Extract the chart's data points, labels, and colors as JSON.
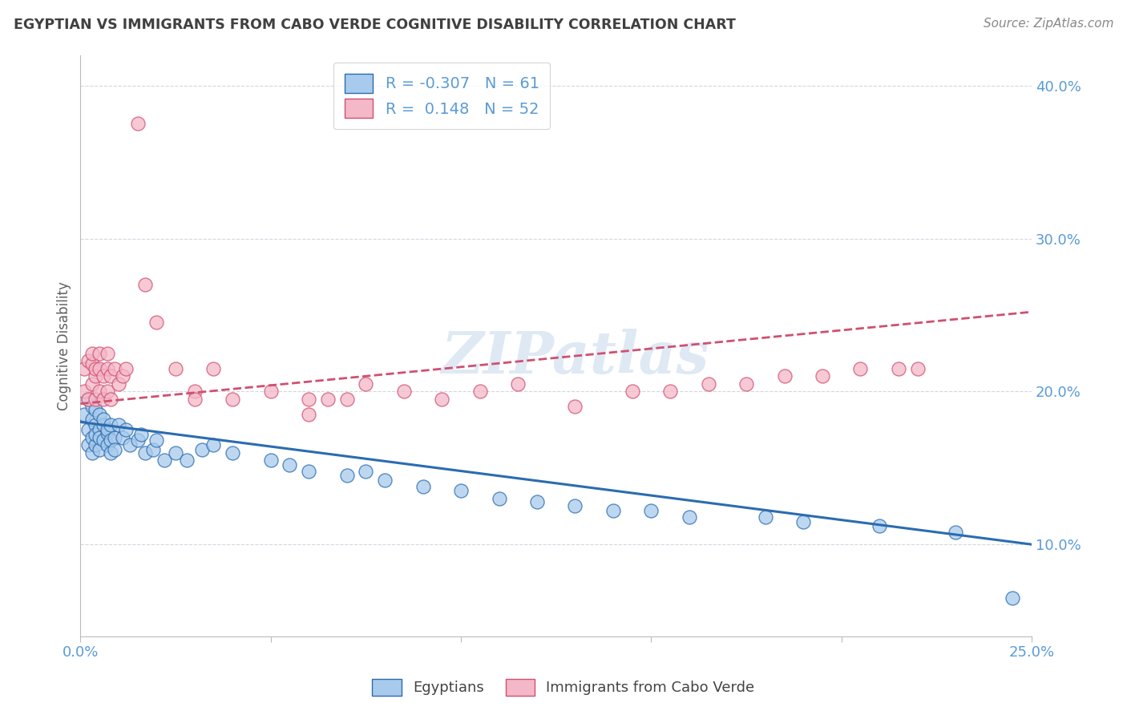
{
  "title": "EGYPTIAN VS IMMIGRANTS FROM CABO VERDE COGNITIVE DISABILITY CORRELATION CHART",
  "source": "Source: ZipAtlas.com",
  "ylabel": "Cognitive Disability",
  "x_min": 0.0,
  "x_max": 0.25,
  "y_min": 0.04,
  "y_max": 0.42,
  "x_ticks": [
    0.0,
    0.05,
    0.1,
    0.15,
    0.2,
    0.25
  ],
  "x_tick_labels": [
    "0.0%",
    "",
    "",
    "",
    "",
    "25.0%"
  ],
  "y_ticks_right": [
    0.1,
    0.2,
    0.3,
    0.4
  ],
  "y_tick_labels_right": [
    "10.0%",
    "20.0%",
    "30.0%",
    "40.0%"
  ],
  "blue_color": "#a8caec",
  "pink_color": "#f4b8c8",
  "blue_line_color": "#2b6cb0",
  "pink_line_color": "#d05070",
  "R_blue": -0.307,
  "N_blue": 61,
  "R_pink": 0.148,
  "N_pink": 52,
  "legend_label_blue": "R = -0.307   N = 61",
  "legend_label_pink": "R =  0.148   N = 52",
  "scatter_blue_x": [
    0.001,
    0.002,
    0.002,
    0.002,
    0.003,
    0.003,
    0.003,
    0.003,
    0.004,
    0.004,
    0.004,
    0.004,
    0.005,
    0.005,
    0.005,
    0.005,
    0.006,
    0.006,
    0.006,
    0.007,
    0.007,
    0.007,
    0.008,
    0.008,
    0.008,
    0.009,
    0.009,
    0.01,
    0.011,
    0.012,
    0.013,
    0.015,
    0.016,
    0.017,
    0.019,
    0.02,
    0.022,
    0.025,
    0.028,
    0.032,
    0.035,
    0.04,
    0.05,
    0.055,
    0.06,
    0.07,
    0.075,
    0.08,
    0.09,
    0.1,
    0.11,
    0.12,
    0.13,
    0.14,
    0.15,
    0.16,
    0.18,
    0.19,
    0.21,
    0.23,
    0.245
  ],
  "scatter_blue_y": [
    0.185,
    0.195,
    0.175,
    0.165,
    0.19,
    0.182,
    0.17,
    0.16,
    0.178,
    0.165,
    0.188,
    0.172,
    0.175,
    0.185,
    0.162,
    0.17,
    0.178,
    0.168,
    0.182,
    0.173,
    0.165,
    0.175,
    0.168,
    0.178,
    0.16,
    0.17,
    0.162,
    0.178,
    0.17,
    0.175,
    0.165,
    0.168,
    0.172,
    0.16,
    0.162,
    0.168,
    0.155,
    0.16,
    0.155,
    0.162,
    0.165,
    0.16,
    0.155,
    0.152,
    0.148,
    0.145,
    0.148,
    0.142,
    0.138,
    0.135,
    0.13,
    0.128,
    0.125,
    0.122,
    0.122,
    0.118,
    0.118,
    0.115,
    0.112,
    0.108,
    0.065
  ],
  "scatter_pink_x": [
    0.001,
    0.001,
    0.002,
    0.002,
    0.003,
    0.003,
    0.003,
    0.004,
    0.004,
    0.004,
    0.005,
    0.005,
    0.005,
    0.006,
    0.006,
    0.007,
    0.007,
    0.007,
    0.008,
    0.008,
    0.009,
    0.01,
    0.011,
    0.012,
    0.015,
    0.017,
    0.02,
    0.025,
    0.03,
    0.035,
    0.04,
    0.05,
    0.06,
    0.065,
    0.07,
    0.075,
    0.085,
    0.095,
    0.105,
    0.115,
    0.13,
    0.145,
    0.155,
    0.165,
    0.175,
    0.185,
    0.195,
    0.205,
    0.215,
    0.22,
    0.06,
    0.03
  ],
  "scatter_pink_y": [
    0.2,
    0.215,
    0.195,
    0.22,
    0.205,
    0.218,
    0.225,
    0.21,
    0.195,
    0.215,
    0.2,
    0.215,
    0.225,
    0.195,
    0.21,
    0.2,
    0.215,
    0.225,
    0.195,
    0.21,
    0.215,
    0.205,
    0.21,
    0.215,
    0.375,
    0.27,
    0.245,
    0.215,
    0.2,
    0.215,
    0.195,
    0.2,
    0.195,
    0.195,
    0.195,
    0.205,
    0.2,
    0.195,
    0.2,
    0.205,
    0.19,
    0.2,
    0.2,
    0.205,
    0.205,
    0.21,
    0.21,
    0.215,
    0.215,
    0.215,
    0.185,
    0.195
  ],
  "watermark_text": "ZIPatlas",
  "background_color": "#ffffff",
  "grid_color": "#d0d8e0",
  "title_color": "#404040",
  "axis_label_color": "#606060",
  "tick_label_color": "#5b9bd5"
}
